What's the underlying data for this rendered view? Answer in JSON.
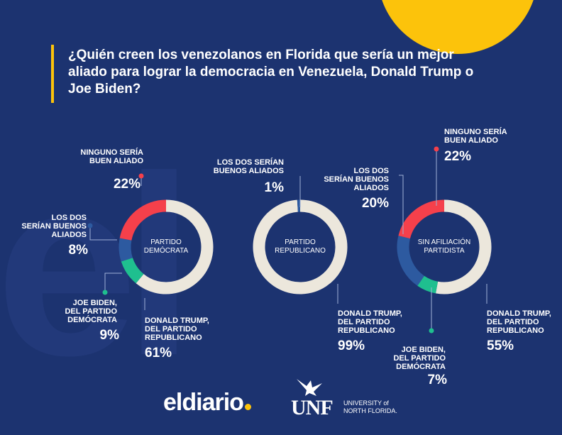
{
  "title": "¿Quién creen los venezolanos en Florida que sería un mejor aliado para lograr la democracia en Venezuela, Donald Trump o Joe Biden?",
  "ghost_letters": "el",
  "colors": {
    "background": "#1c3370",
    "trump": "#ece7dc",
    "ninguno": "#f5404b",
    "los_dos": "#2d5aa0",
    "biden": "#1fbf8f",
    "accent": "#fcc30b"
  },
  "chart_data": [
    {
      "type": "pie",
      "center_label": [
        "PARTIDO",
        "DEMÓCRATA"
      ],
      "slices": [
        {
          "key": "trump",
          "label": [
            "DONALD TRUMP,",
            "DEL PARTIDO",
            "REPUBLICANO"
          ],
          "pct_text": "61%",
          "value": 61
        },
        {
          "key": "biden",
          "label": [
            "JOE BIDEN,",
            "DEL PARTIDO",
            "DEMÓCRATA"
          ],
          "pct_text": "9%",
          "value": 9
        },
        {
          "key": "los_dos",
          "label": [
            "LOS DOS",
            "SERÍAN BUENOS",
            "ALIADOS"
          ],
          "pct_text": "8%",
          "value": 8
        },
        {
          "key": "ninguno",
          "label": [
            "NINGUNO SERÍA",
            "BUEN ALIADO"
          ],
          "pct_text": "22%",
          "value": 22
        }
      ]
    },
    {
      "type": "pie",
      "center_label": [
        "PARTIDO",
        "REPUBLICANO"
      ],
      "slices": [
        {
          "key": "trump",
          "label": [
            "DONALD TRUMP,",
            "DEL PARTIDO",
            "REPUBLICANO"
          ],
          "pct_text": "99%",
          "value": 99
        },
        {
          "key": "los_dos",
          "label": [
            "LOS DOS SERÍAN",
            "BUENOS ALIADOS"
          ],
          "pct_text": "1%",
          "value": 1
        }
      ]
    },
    {
      "type": "pie",
      "center_label": [
        "SIN AFILIACIÓN",
        "PARTIDISTA"
      ],
      "slices": [
        {
          "key": "trump",
          "label": [
            "DONALD TRUMP,",
            "DEL PARTIDO",
            "REPUBLICANO"
          ],
          "pct_text": "55%",
          "value": 55
        },
        {
          "key": "biden",
          "label": [
            "JOE BIDEN,",
            "DEL PARTIDO",
            "DEMÓCRATA"
          ],
          "pct_text": "7%",
          "value": 7
        },
        {
          "key": "los_dos",
          "label": [
            "LOS DOS",
            "SERÍAN BUENOS",
            "ALIADOS"
          ],
          "pct_text": "20%",
          "value": 20
        },
        {
          "key": "ninguno",
          "label": [
            "NINGUNO SERÍA",
            "BUEN ALIADO"
          ],
          "pct_text": "22%",
          "value": 22
        }
      ]
    }
  ],
  "logos": {
    "eldiario": "eldiario",
    "unf": "UNF",
    "unf_line1": "UNIVERSITY of",
    "unf_line2": "NORTH FLORIDA."
  }
}
